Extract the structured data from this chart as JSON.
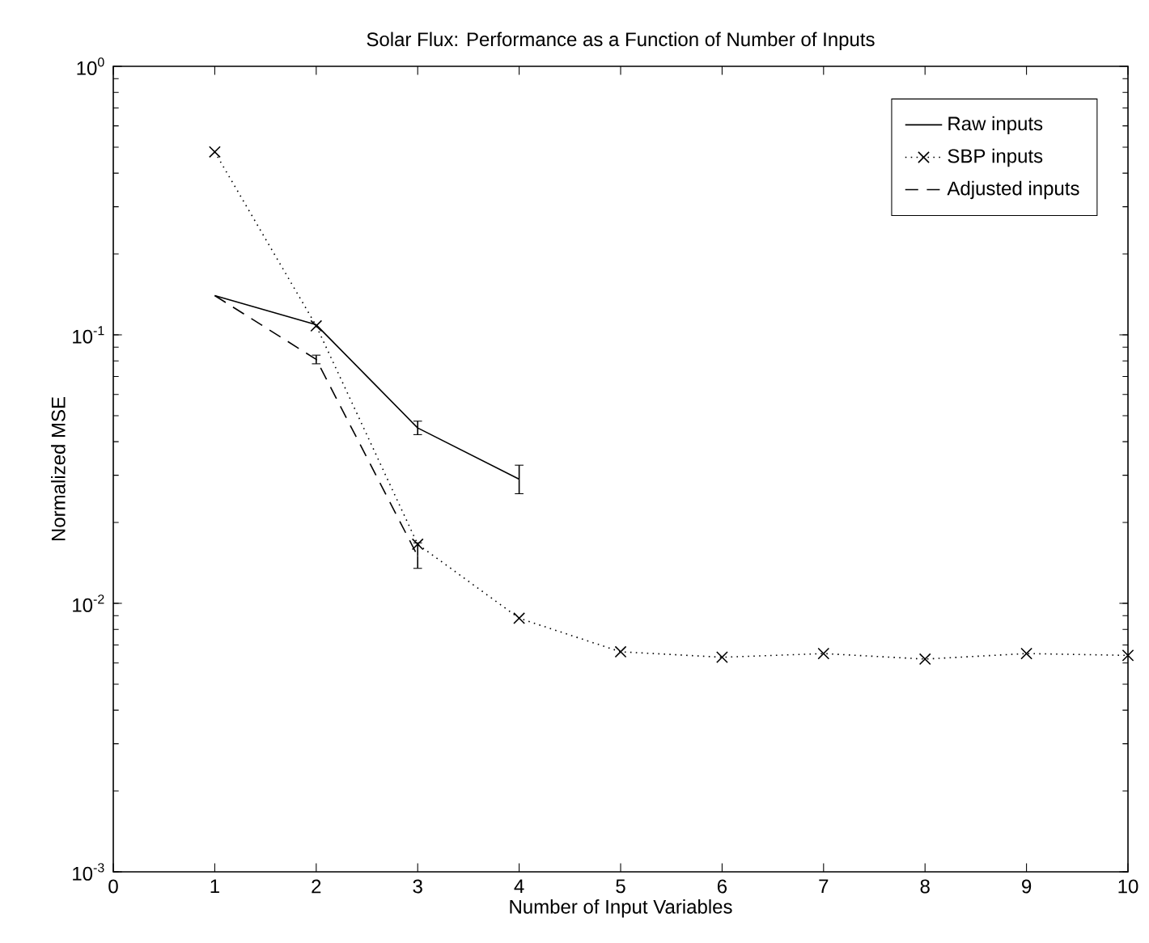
{
  "chart_data": {
    "type": "line",
    "title": "Solar Flux: Performance as a Function of Number of Inputs",
    "xlabel": "Number of Input Variables",
    "ylabel": "Normalized MSE",
    "log": "y",
    "xlim": [
      0,
      10
    ],
    "ylim": [
      0.001,
      1
    ],
    "xticks": [
      0,
      1,
      2,
      3,
      4,
      5,
      6,
      7,
      8,
      9,
      10
    ],
    "yticks": [
      {
        "value": 0.001,
        "label": "10$^{-3}$"
      },
      {
        "value": 0.01,
        "label": "10$^{-2}$"
      },
      {
        "value": 0.1,
        "label": "10$^{-1}$"
      },
      {
        "value": 1,
        "label": "10$^{0}$"
      }
    ],
    "grid": false,
    "legend": "top right",
    "series": [
      {
        "name": "Raw inputs",
        "color": "#000000",
        "line_style": "solid",
        "marker": "none",
        "x": [
          1,
          2,
          3,
          4
        ],
        "values": [
          0.14,
          0.109,
          0.045,
          0.029
        ],
        "errors": [
          null,
          null,
          [
            0.0425,
            0.0477
          ],
          [
            0.0256,
            0.0327
          ]
        ]
      },
      {
        "name": "SBP inputs",
        "color": "#000000",
        "line_style": "dotted",
        "marker": "cross",
        "x": [
          1,
          2,
          3,
          4,
          5,
          6,
          7,
          8,
          9,
          10
        ],
        "values": [
          0.48,
          0.108,
          0.0166,
          0.0088,
          0.0066,
          0.0063,
          0.0065,
          0.0062,
          0.0065,
          0.0064
        ]
      },
      {
        "name": "Adjusted inputs",
        "color": "#000000",
        "line_style": "dashed",
        "marker": "none",
        "x": [
          1,
          2,
          3
        ],
        "values": [
          0.14,
          0.081,
          0.015
        ],
        "errors": [
          null,
          [
            0.078,
            0.084
          ],
          [
            0.0135,
            0.0168
          ]
        ]
      }
    ]
  }
}
